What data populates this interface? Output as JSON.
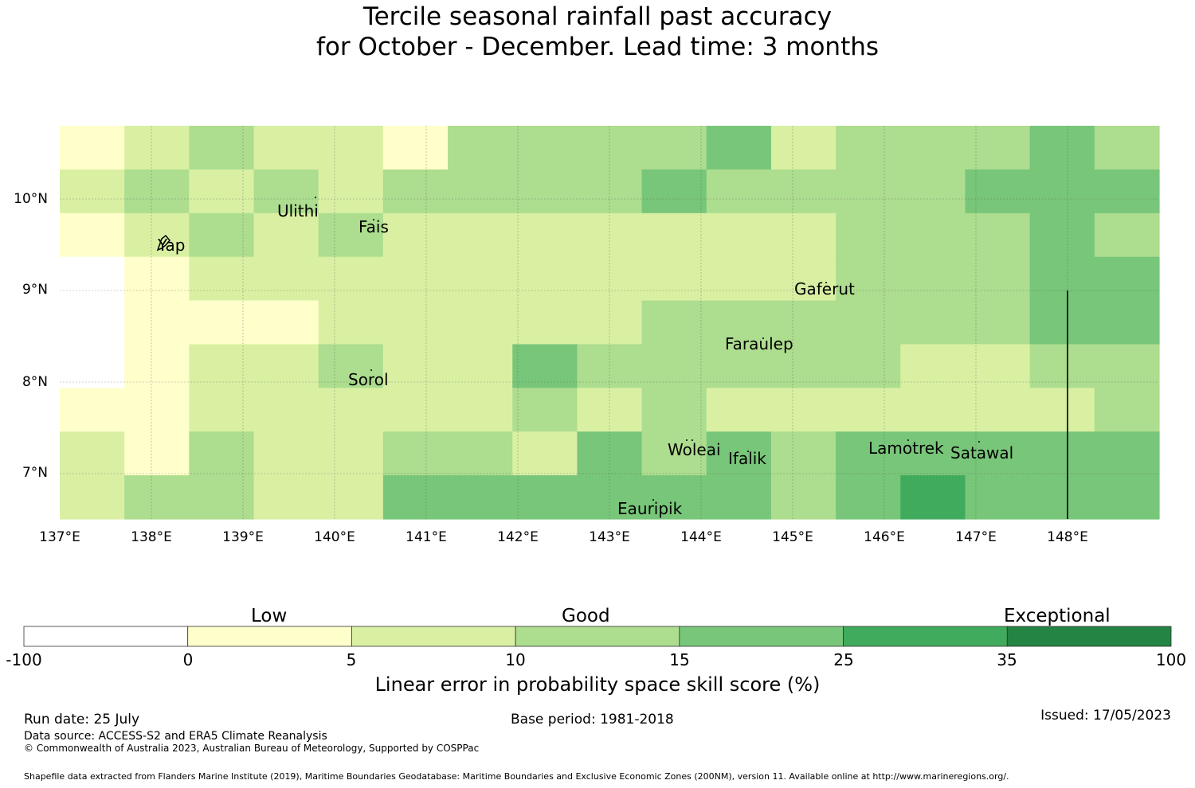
{
  "title": {
    "line1": "Tercile seasonal rainfall past accuracy",
    "line2": "for October - December. Lead time: 3 months"
  },
  "map": {
    "lat_labels": [
      "10°N",
      "9°N",
      "8°N",
      "7°N"
    ],
    "lon_labels": [
      "137°E",
      "138°E",
      "139°E",
      "140°E",
      "141°E",
      "142°E",
      "143°E",
      "144°E",
      "145°E",
      "146°E",
      "147°E",
      "148°E"
    ],
    "places": [
      "Ulithi",
      "Fais",
      "Yap",
      "Gaferut",
      "Faraulep",
      "Sorol",
      "Woleai",
      "Ifalik",
      "Lamotrek",
      "Satawal",
      "Eauripik"
    ],
    "grid_rows": [
      [
        1,
        2,
        3,
        2,
        2,
        1,
        3,
        3,
        3,
        3,
        4,
        2,
        3,
        3,
        3,
        4,
        3
      ],
      [
        2,
        3,
        2,
        3,
        2,
        3,
        3,
        3,
        3,
        4,
        3,
        3,
        3,
        3,
        4,
        4,
        4
      ],
      [
        1,
        2,
        3,
        2,
        3,
        2,
        2,
        2,
        2,
        2,
        2,
        2,
        3,
        3,
        3,
        4,
        3
      ],
      [
        0,
        1,
        2,
        2,
        2,
        2,
        2,
        2,
        2,
        2,
        2,
        2,
        3,
        3,
        3,
        4,
        4
      ],
      [
        0,
        1,
        1,
        1,
        2,
        2,
        2,
        2,
        2,
        3,
        3,
        3,
        3,
        3,
        3,
        4,
        4
      ],
      [
        0,
        1,
        2,
        2,
        3,
        2,
        2,
        4,
        3,
        3,
        3,
        3,
        3,
        2,
        2,
        3,
        3
      ],
      [
        1,
        1,
        2,
        2,
        2,
        2,
        2,
        3,
        2,
        3,
        2,
        2,
        2,
        2,
        2,
        2,
        3
      ],
      [
        2,
        1,
        3,
        2,
        2,
        3,
        3,
        2,
        4,
        3,
        4,
        3,
        4,
        4,
        4,
        4,
        4
      ],
      [
        2,
        3,
        3,
        2,
        2,
        4,
        4,
        4,
        4,
        4,
        4,
        3,
        4,
        5,
        4,
        4,
        4
      ]
    ]
  },
  "colorbar": {
    "categories": [
      "Low",
      "Good",
      "Exceptional"
    ],
    "ticks": [
      "-100",
      "0",
      "5",
      "10",
      "15",
      "25",
      "35",
      "100"
    ],
    "colors": [
      "#ffffff",
      "#ffffcc",
      "#d9f0a3",
      "#addd8e",
      "#78c679",
      "#41ab5d",
      "#238443"
    ],
    "title": "Linear error in probability space skill score (%)"
  },
  "footer": {
    "run_date": "Run date: 25 July",
    "base_period": "Base period: 1981-2018",
    "issued": "Issued: 17/05/2023",
    "data_source": "Data source: ACCESS-S2 and ERA5 Climate Reanalysis",
    "copyright": "© Commonwealth of Australia 2023, Australian Bureau of Meteorology, Supported by COSPPac",
    "shapefile": "Shapefile data extracted from Flanders Marine Institute (2019), Maritime Boundaries Geodatabase: Maritime Boundaries and Exclusive Economic Zones (200NM), version 11. Available online at http://www.marineregions.org/."
  }
}
